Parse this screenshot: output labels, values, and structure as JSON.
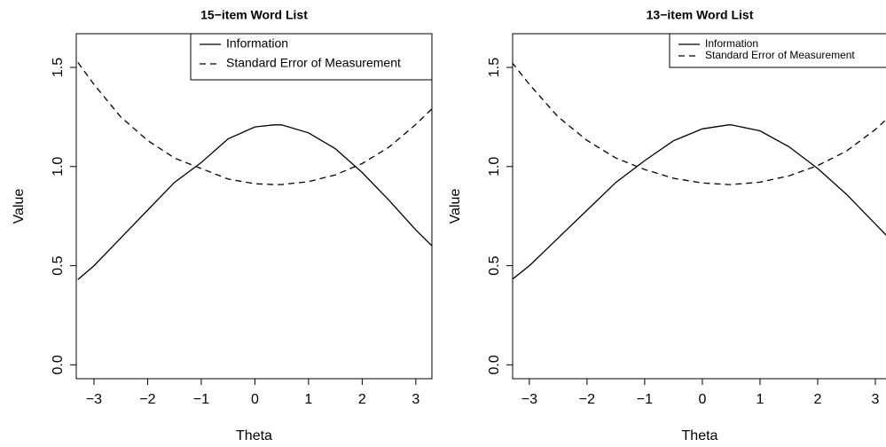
{
  "chart_data": [
    {
      "type": "line",
      "title": "15−item Word List",
      "x_label": "Theta",
      "y_label": "Value",
      "x": [
        -3.3,
        -3,
        -2.5,
        -2,
        -1.5,
        -1,
        -0.5,
        0,
        0.35,
        0.5,
        1,
        1.5,
        2,
        2.5,
        3,
        3.3
      ],
      "series": [
        {
          "name": "Information",
          "color": "#000000",
          "linestyle": "solid",
          "values": [
            0.43,
            0.5,
            0.64,
            0.78,
            0.92,
            1.02,
            1.14,
            1.2,
            1.21,
            1.21,
            1.17,
            1.09,
            0.97,
            0.83,
            0.68,
            0.6
          ]
        },
        {
          "name": "Standard Error of Measurement",
          "color": "#000000",
          "linestyle": "dashed",
          "values": [
            1.525,
            1.414,
            1.25,
            1.132,
            1.043,
            0.99,
            0.937,
            0.913,
            0.909,
            0.909,
            0.924,
            0.958,
            1.015,
            1.098,
            1.213,
            1.291
          ]
        }
      ],
      "xlim": [
        -3.33,
        3.3
      ],
      "ylim": [
        -0.07,
        1.67
      ],
      "xticks": [
        {
          "value": -3,
          "label": "−3"
        },
        {
          "value": -2,
          "label": "−2"
        },
        {
          "value": -1,
          "label": "−1"
        },
        0,
        1,
        2,
        3
      ],
      "yticks": [
        {
          "value": 0,
          "label": "0.0"
        },
        0.5,
        {
          "value": 1,
          "label": "1.0"
        },
        1.5
      ],
      "legend": "topright"
    },
    {
      "type": "line",
      "title": "13−item Word List",
      "x_label": "Theta",
      "y_label": "Value",
      "x": [
        -3.3,
        -3,
        -2.5,
        -2,
        -1.5,
        -1,
        -0.5,
        0,
        0.45,
        0.5,
        1,
        1.5,
        2,
        2.5,
        3,
        3.2
      ],
      "series": [
        {
          "name": "Information",
          "color": "#000000",
          "linestyle": "solid",
          "values": [
            0.43,
            0.5,
            0.64,
            0.78,
            0.92,
            1.03,
            1.13,
            1.19,
            1.21,
            1.21,
            1.18,
            1.1,
            0.99,
            0.86,
            0.71,
            0.65
          ]
        },
        {
          "name": "Standard Error of Measurement",
          "color": "#000000",
          "linestyle": "dashed",
          "values": [
            1.525,
            1.414,
            1.25,
            1.132,
            1.043,
            0.985,
            0.941,
            0.917,
            0.909,
            0.909,
            0.921,
            0.953,
            1.005,
            1.078,
            1.187,
            1.24
          ]
        }
      ],
      "xlim": [
        -3.29,
        3.2
      ],
      "ylim": [
        -0.07,
        1.67
      ],
      "xticks": [
        {
          "value": -3,
          "label": "−3"
        },
        {
          "value": -2,
          "label": "−2"
        },
        {
          "value": -1,
          "label": "−1"
        },
        0,
        1,
        2,
        3
      ],
      "yticks": [
        {
          "value": 0,
          "label": "0.0"
        },
        0.5,
        {
          "value": 1,
          "label": "1.0"
        },
        1.5
      ],
      "legend": "topright"
    }
  ]
}
